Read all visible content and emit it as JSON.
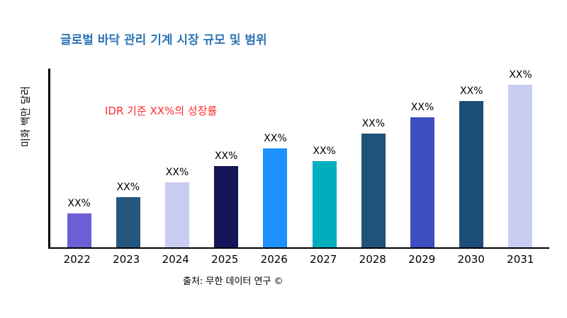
{
  "page": {
    "background": "#ffffff"
  },
  "header": {
    "title": "글로벌 바닥 관리 기계 시장 규모 및 범위",
    "title_color": "#2E75B6"
  },
  "annotation": {
    "text": "IDR 기준 XX%의 성장률",
    "color": "#FF2A2A"
  },
  "source": {
    "text": "출처: 무한 데이터 연구 ©"
  },
  "chart_data": {
    "type": "bar",
    "title": "글로벌 바닥 관리 기계 시장 규모 및 범위",
    "xlabel": "",
    "ylabel": "미화 백만 달러",
    "categories": [
      "2022",
      "2023",
      "2024",
      "2025",
      "2026",
      "2027",
      "2028",
      "2029",
      "2030",
      "2031"
    ],
    "values": [
      21,
      31,
      40,
      50,
      61,
      53,
      70,
      80,
      90,
      100
    ],
    "bar_labels": [
      "XX%",
      "XX%",
      "XX%",
      "XX%",
      "XX%",
      "XX%",
      "XX%",
      "XX%",
      "XX%",
      "XX%"
    ],
    "colors": [
      "#6A5FD4",
      "#24567E",
      "#C9CDF2",
      "#15155A",
      "#1E90FF",
      "#00AEBD",
      "#1F537A",
      "#3D4EC1",
      "#1C4E79",
      "#C9CDF2"
    ],
    "ylim": [
      0,
      110
    ],
    "grid": false,
    "legend": "none",
    "annotation": "IDR 기준 XX%의 성장률"
  }
}
